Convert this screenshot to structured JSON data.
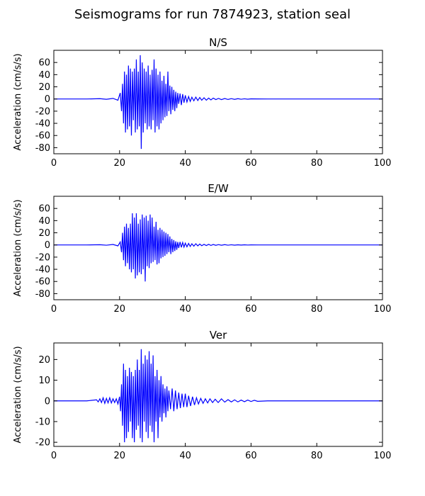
{
  "figure": {
    "title": "Seismograms for run 7874923, station seal"
  },
  "chart_data": [
    {
      "type": "line",
      "title": "N/S",
      "xlabel": "",
      "ylabel": "Acceleration (cm/s/s)",
      "xlim": [
        0,
        100
      ],
      "ylim": [
        -90,
        80
      ],
      "xticks": [
        0,
        20,
        40,
        60,
        80,
        100
      ],
      "yticks": [
        -80,
        -60,
        -40,
        -20,
        0,
        20,
        40,
        60
      ],
      "color": "#0000ff",
      "grid": false,
      "series": [
        {
          "x": [
            0,
            10,
            14,
            16,
            18,
            19.5,
            20.2,
            20.6,
            20.9,
            21.2,
            21.5,
            21.8,
            22.1,
            22.4,
            22.7,
            23.0,
            23.3,
            23.6,
            23.9,
            24.2,
            24.5,
            24.8,
            25.1,
            25.4,
            25.7,
            26.0,
            26.3,
            26.6,
            26.9,
            27.2,
            27.5,
            27.8,
            28.1,
            28.4,
            28.7,
            29.0,
            29.3,
            29.6,
            29.9,
            30.2,
            30.5,
            30.8,
            31.1,
            31.4,
            31.7,
            32.0,
            32.3,
            32.6,
            32.9,
            33.2,
            33.5,
            33.8,
            34.1,
            34.4,
            34.7,
            35.0,
            35.3,
            35.6,
            35.9,
            36.2,
            36.5,
            36.8,
            37.1,
            37.4,
            37.7,
            38.0,
            38.4,
            38.8,
            39.2,
            39.6,
            40.0,
            40.5,
            41.0,
            41.5,
            42.0,
            42.6,
            43.2,
            43.8,
            44.4,
            45.0,
            45.7,
            46.4,
            47.1,
            47.8,
            48.5,
            49.3,
            50.1,
            51.0,
            52.0,
            53.0,
            54.0,
            55.0,
            56.0,
            57.0,
            58.0,
            59.0,
            60.0,
            62.0,
            65.0,
            70.0,
            80.0,
            90.0,
            100.0
          ],
          "y": [
            0,
            0,
            0.5,
            -0.5,
            1,
            -2,
            10,
            -20,
            25,
            -40,
            45,
            -55,
            40,
            -50,
            55,
            -45,
            50,
            -60,
            45,
            -35,
            50,
            -55,
            65,
            -50,
            45,
            -45,
            72,
            -82,
            60,
            -55,
            50,
            -40,
            45,
            -50,
            55,
            -45,
            40,
            -50,
            48,
            -35,
            65,
            -55,
            50,
            -45,
            40,
            -50,
            45,
            -40,
            30,
            -35,
            38,
            -30,
            25,
            -28,
            45,
            -20,
            22,
            -25,
            20,
            -18,
            15,
            -20,
            12,
            -15,
            10,
            -8,
            9,
            -10,
            8,
            -6,
            6,
            -5,
            4,
            -4,
            3,
            -3,
            3,
            -2.5,
            2.5,
            -2,
            2,
            -2,
            1.5,
            -1.5,
            1.5,
            -1,
            1,
            -1,
            0.8,
            -0.8,
            0.6,
            -0.6,
            0.5,
            -0.4,
            0.3,
            -0.3,
            0.2,
            0.1,
            0,
            0,
            0,
            0,
            0
          ]
        }
      ]
    },
    {
      "type": "line",
      "title": "E/W",
      "xlabel": "",
      "ylabel": "Acceleration (cm/s/s)",
      "xlim": [
        0,
        100
      ],
      "ylim": [
        -90,
        80
      ],
      "xticks": [
        0,
        20,
        40,
        60,
        80,
        100
      ],
      "yticks": [
        -80,
        -60,
        -40,
        -20,
        0,
        20,
        40,
        60
      ],
      "color": "#0000ff",
      "grid": false,
      "series": [
        {
          "x": [
            0,
            10,
            14,
            16,
            18,
            19.5,
            20.2,
            20.6,
            20.9,
            21.2,
            21.5,
            21.8,
            22.1,
            22.4,
            22.7,
            23.0,
            23.3,
            23.6,
            23.9,
            24.2,
            24.5,
            24.8,
            25.1,
            25.4,
            25.7,
            26.0,
            26.3,
            26.6,
            26.9,
            27.2,
            27.5,
            27.8,
            28.1,
            28.4,
            28.7,
            29.0,
            29.3,
            29.6,
            29.9,
            30.2,
            30.5,
            30.8,
            31.1,
            31.4,
            31.7,
            32.0,
            32.3,
            32.6,
            32.9,
            33.2,
            33.5,
            33.8,
            34.1,
            34.4,
            34.7,
            35.0,
            35.3,
            35.6,
            35.9,
            36.2,
            36.5,
            36.8,
            37.1,
            37.4,
            37.7,
            38.0,
            38.4,
            38.8,
            39.2,
            39.6,
            40.0,
            40.5,
            41.0,
            41.5,
            42.0,
            42.6,
            43.2,
            43.8,
            44.4,
            45.0,
            45.7,
            46.4,
            47.1,
            47.8,
            48.5,
            49.3,
            50.1,
            51.0,
            52.0,
            53.0,
            54.0,
            55.0,
            56.0,
            57.0,
            58.0,
            59.0,
            60.0,
            62.0,
            65.0,
            70.0,
            80.0,
            90.0,
            100.0
          ],
          "y": [
            0,
            0,
            0.4,
            -0.4,
            0.8,
            -1.5,
            5,
            -12,
            20,
            -25,
            30,
            -35,
            35,
            -30,
            28,
            -40,
            35,
            -45,
            52,
            -40,
            45,
            -55,
            52,
            -50,
            35,
            -45,
            42,
            -48,
            50,
            -40,
            45,
            -60,
            48,
            -35,
            40,
            -38,
            50,
            -30,
            45,
            -28,
            30,
            -25,
            38,
            -32,
            25,
            -30,
            28,
            -22,
            25,
            -20,
            22,
            -18,
            20,
            -15,
            18,
            -12,
            14,
            -15,
            10,
            -12,
            8,
            -10,
            6,
            -8,
            5,
            -5,
            5,
            -4,
            4,
            -3.5,
            3,
            -3,
            2.5,
            -2.5,
            2,
            -2,
            2,
            -1.5,
            1.5,
            -1.2,
            1,
            -1,
            1,
            -0.8,
            0.8,
            -0.6,
            0.6,
            -0.5,
            0.5,
            -0.4,
            0.3,
            -0.3,
            0.2,
            -0.2,
            0.2,
            -0.1,
            0.1,
            0,
            0,
            0,
            0,
            0,
            0
          ]
        }
      ]
    },
    {
      "type": "line",
      "title": "Ver",
      "xlabel": "",
      "ylabel": "Acceleration (cm/s/s)",
      "xlim": [
        0,
        100
      ],
      "ylim": [
        -22,
        28
      ],
      "xticks": [
        0,
        20,
        40,
        60,
        80,
        100
      ],
      "yticks": [
        -20,
        -10,
        0,
        10,
        20
      ],
      "color": "#0000ff",
      "grid": false,
      "series": [
        {
          "x": [
            0,
            10,
            13.0,
            13.5,
            14.0,
            14.5,
            15.0,
            15.5,
            16.0,
            16.5,
            17.0,
            17.5,
            18.0,
            18.5,
            19.0,
            19.5,
            20.0,
            20.3,
            20.6,
            20.9,
            21.2,
            21.5,
            21.8,
            22.1,
            22.4,
            22.7,
            23.0,
            23.3,
            23.6,
            23.9,
            24.2,
            24.5,
            24.8,
            25.1,
            25.4,
            25.7,
            26.0,
            26.3,
            26.6,
            26.9,
            27.2,
            27.5,
            27.8,
            28.1,
            28.4,
            28.7,
            29.0,
            29.3,
            29.6,
            29.9,
            30.2,
            30.5,
            30.8,
            31.1,
            31.4,
            31.7,
            32.0,
            32.3,
            32.6,
            32.9,
            33.2,
            33.5,
            33.8,
            34.1,
            34.4,
            34.7,
            35.0,
            35.5,
            36.0,
            36.5,
            37.0,
            37.5,
            38.0,
            38.5,
            39.0,
            39.5,
            40.0,
            40.5,
            41.0,
            41.6,
            42.2,
            42.8,
            43.4,
            44.0,
            44.7,
            45.4,
            46.1,
            46.8,
            47.5,
            48.3,
            49.1,
            50.0,
            51.0,
            52.0,
            53.0,
            54.0,
            55.0,
            56.0,
            57.0,
            58.0,
            59.0,
            60.0,
            61.0,
            62.0,
            65.0,
            70.0,
            80.0,
            90.0,
            100.0
          ],
          "y": [
            0,
            0,
            0.5,
            -0.5,
            1.0,
            -0.8,
            1.5,
            -1.2,
            1.2,
            -1.0,
            1.5,
            -1.0,
            1.0,
            -0.8,
            1.0,
            -1.5,
            2.0,
            -5,
            8,
            -12,
            18,
            -20,
            15,
            -18,
            12,
            -15,
            16,
            -10,
            14,
            -18,
            12,
            -20,
            15,
            -14,
            20,
            -12,
            15,
            -18,
            25,
            -20,
            18,
            -10,
            22,
            -15,
            20,
            -18,
            24,
            -12,
            18,
            -15,
            22,
            -20,
            12,
            -10,
            15,
            -18,
            10,
            -8,
            12,
            -10,
            8,
            -6,
            6,
            -8,
            7,
            -5,
            5,
            -4,
            6,
            -5,
            5,
            -4,
            4,
            -3.5,
            3.5,
            -3,
            3.5,
            -3,
            2.5,
            -2.5,
            2,
            -2,
            1.5,
            -1.5,
            1.2,
            -1.2,
            1.0,
            -1.0,
            1.0,
            -0.8,
            0.8,
            -0.8,
            1.0,
            -0.6,
            0.6,
            -0.5,
            0.5,
            -0.5,
            0.4,
            -0.4,
            0.4,
            -0.3,
            0.3,
            -0.2,
            0,
            0,
            0,
            0,
            0
          ]
        }
      ]
    }
  ]
}
